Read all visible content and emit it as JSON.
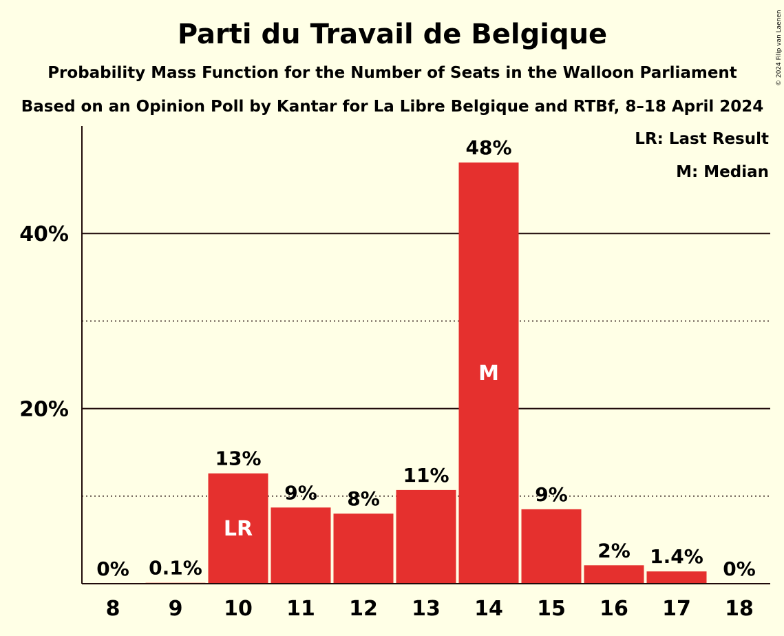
{
  "chart_data": {
    "type": "bar",
    "title": "Parti du Travail de Belgique",
    "subtitle": "Probability Mass Function for the Number of Seats in the Walloon Parliament",
    "subtitle2": "Based on an Opinion Poll by Kantar for La Libre Belgique and RTBf, 8–18 April 2024",
    "copyright": "© 2024 Filip van Laenen",
    "legend": [
      "LR: Last Result",
      "M: Median"
    ],
    "categories": [
      "8",
      "9",
      "10",
      "11",
      "12",
      "13",
      "14",
      "15",
      "16",
      "17",
      "18"
    ],
    "values": [
      0,
      0.1,
      12.6,
      8.7,
      8.0,
      10.7,
      48.1,
      8.5,
      2.1,
      1.4,
      0
    ],
    "value_labels": [
      "0%",
      "0.1%",
      "13%",
      "9%",
      "8%",
      "11%",
      "48%",
      "9%",
      "2%",
      "1.4%",
      "0%"
    ],
    "bar_markers": {
      "10": "LR",
      "14": "M"
    },
    "yticks": [
      20,
      40
    ],
    "ytick_labels": [
      "20%",
      "40%"
    ],
    "minor_gridlines": [
      10,
      30
    ],
    "ylim": [
      0,
      52
    ],
    "colors": {
      "bar": "#e5302e",
      "background": "#ffffe6",
      "text": "#1f0a0a"
    }
  }
}
